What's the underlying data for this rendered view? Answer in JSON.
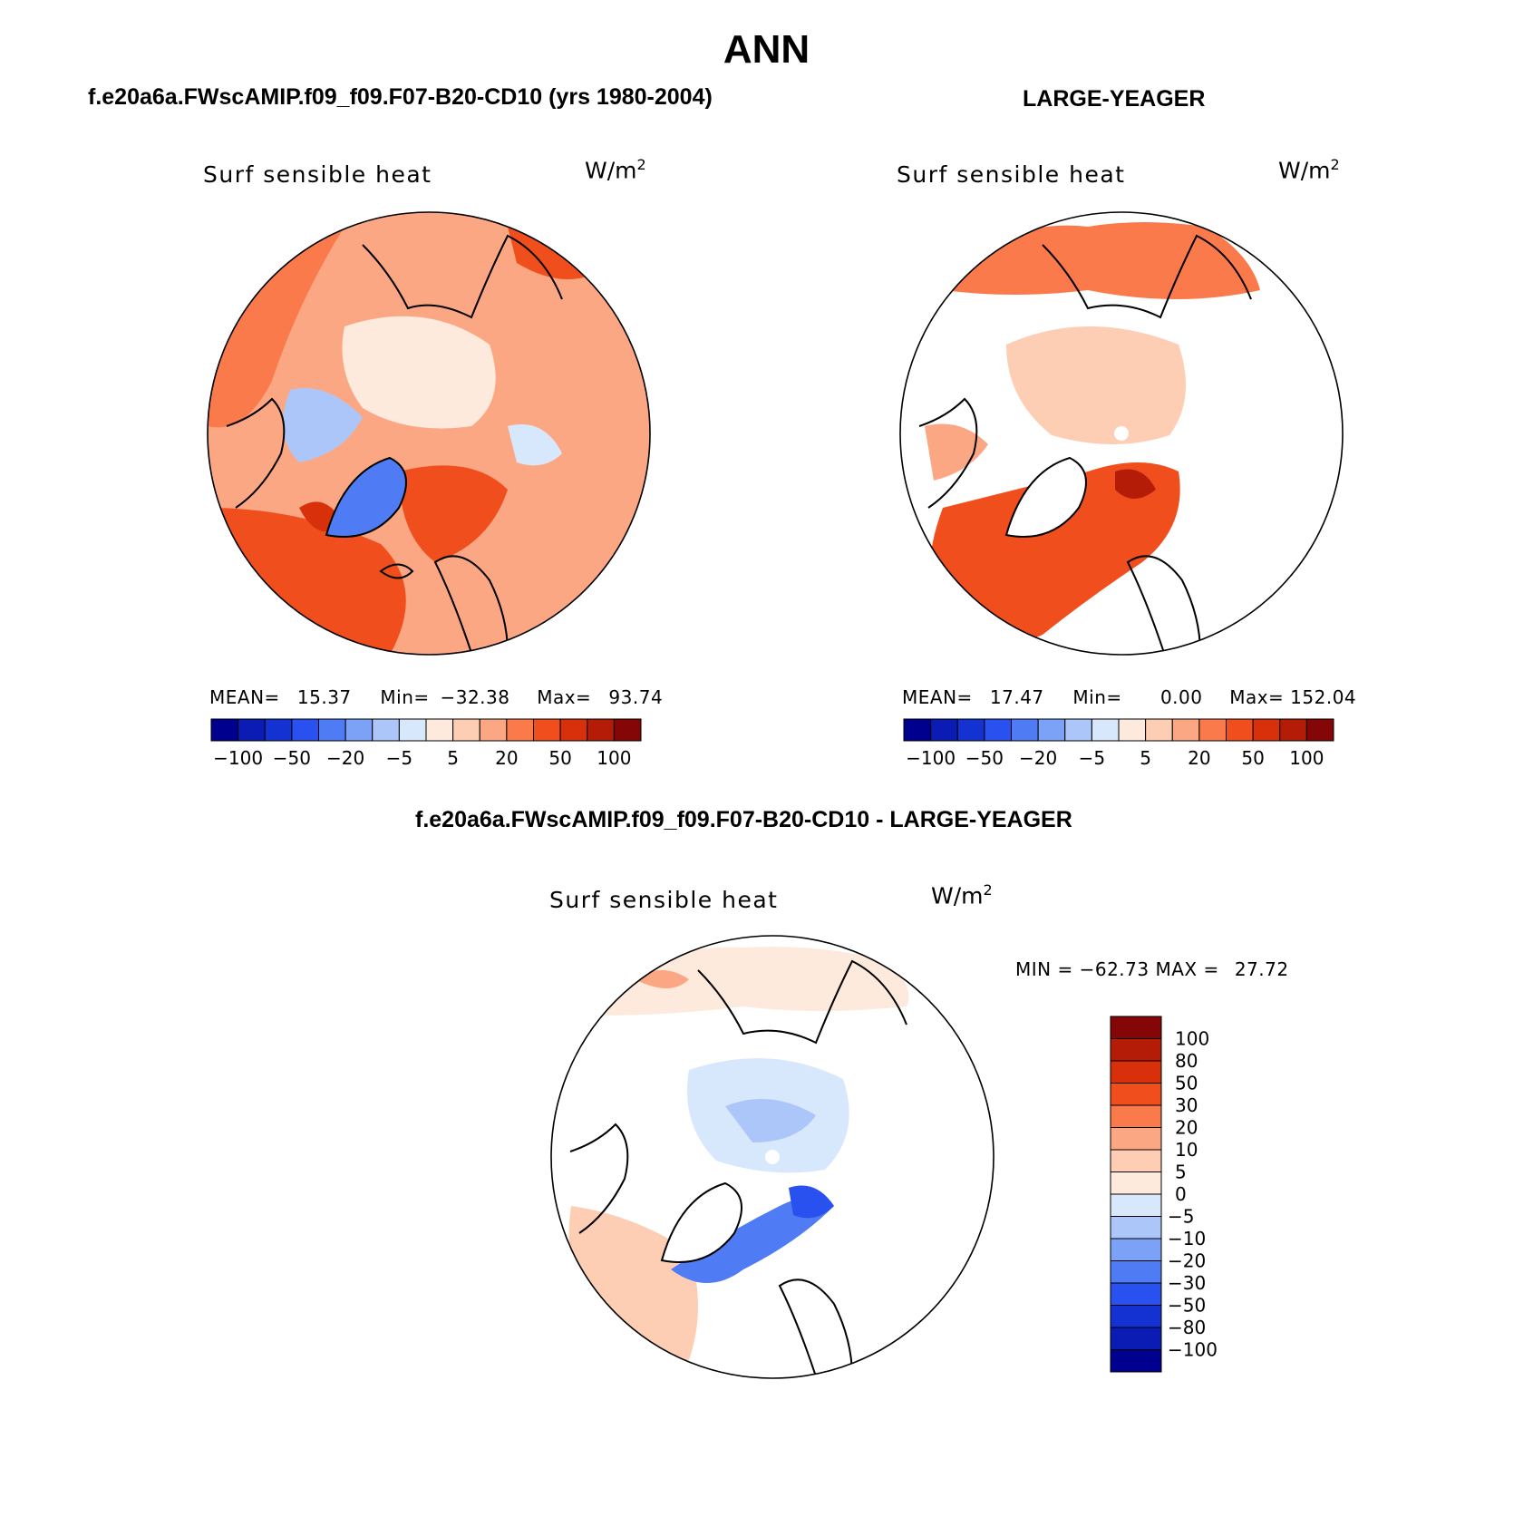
{
  "main_title": "ANN",
  "panels": [
    {
      "id": "model",
      "title": "f.e20a6a.FWscAMIP.f09_f09.F07-B20-CD10 (yrs 1980-2004)",
      "variable": "Surf sensible heat",
      "units_base": "W/m",
      "units_exp": "2",
      "stats": {
        "mean_label": "MEAN=",
        "mean": "15.37",
        "min_label": "Min=",
        "min": "−32.38",
        "max_label": "Max=",
        "max": "93.74"
      }
    },
    {
      "id": "obs",
      "title": "LARGE-YEAGER",
      "variable": "Surf sensible heat",
      "units_base": "W/m",
      "units_exp": "2",
      "stats": {
        "mean_label": "MEAN=",
        "mean": "17.47",
        "min_label": "Min=",
        "min": "0.00",
        "max_label": "Max=",
        "max": "152.04"
      }
    },
    {
      "id": "diff",
      "title": "f.e20a6a.FWscAMIP.f09_f09.F07-B20-CD10 - LARGE-YEAGER",
      "variable": "Surf sensible heat",
      "units_base": "W/m",
      "units_exp": "2",
      "stats": {
        "min_label": "MIN =",
        "min": "−62.73",
        "max_label": "MAX =",
        "max": "27.72"
      }
    }
  ],
  "horizontal_colorbar": {
    "colors": [
      "#00008f",
      "#0a1cb4",
      "#1432d2",
      "#2851f0",
      "#4f7cf5",
      "#7ba2f7",
      "#adc6fa",
      "#d7e8fd",
      "#feeadc",
      "#fdcdb4",
      "#fca783",
      "#fb7a4c",
      "#f04e1c",
      "#d8300b",
      "#b41c07",
      "#850606"
    ],
    "ticks": [
      "−100",
      "−50",
      "−20",
      "−5",
      "5",
      "20",
      "50",
      "100"
    ]
  },
  "vertical_colorbar": {
    "colors": [
      "#850606",
      "#b41c07",
      "#d8300b",
      "#f04e1c",
      "#fb7a4c",
      "#fca783",
      "#fdcdb4",
      "#feeadc",
      "#d7e8fd",
      "#adc6fa",
      "#7ba2f7",
      "#4f7cf5",
      "#2851f0",
      "#1432d2",
      "#0a1cb4",
      "#00008f"
    ],
    "ticks": [
      "100",
      "80",
      "50",
      "30",
      "20",
      "10",
      "5",
      "0",
      "−5",
      "−10",
      "−20",
      "−30",
      "−50",
      "−80",
      "−100"
    ]
  }
}
